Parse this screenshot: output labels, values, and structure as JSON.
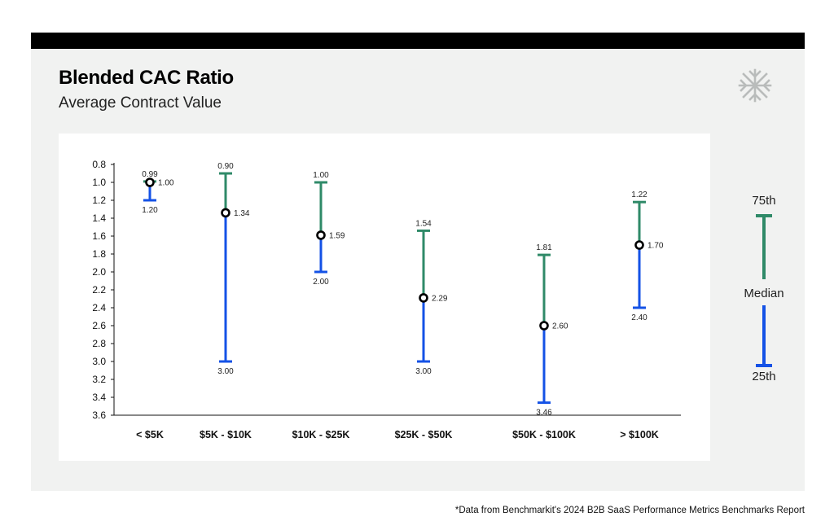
{
  "header": {
    "title": "Blended CAC Ratio",
    "subtitle": "Average Contract Value"
  },
  "logo": {
    "icon": "snowflake-logo-icon"
  },
  "colors": {
    "upper": "#2f8a68",
    "lower": "#1452e6",
    "median_stroke": "#000000",
    "panel_bg": "#f1f2f1",
    "topbar": "#000000"
  },
  "legend": {
    "top_label": "75th",
    "middle_label": "Median",
    "bottom_label": "25th"
  },
  "footnote": "*Data from Benchmarkit's 2024 B2B SaaS Performance Metrics Benchmarks Report",
  "chart_data": {
    "type": "range",
    "title": "Blended CAC Ratio",
    "subtitle": "Average Contract Value",
    "xlabel": "",
    "ylabel": "",
    "y_axis_inverted": true,
    "ylim": [
      0.8,
      3.6
    ],
    "yticks": [
      "0.8",
      "1.0",
      "1.2",
      "1.4",
      "1.6",
      "1.8",
      "2.0",
      "2.2",
      "2.4",
      "2.6",
      "2.8",
      "3.0",
      "3.2",
      "3.4",
      "3.6"
    ],
    "categories": [
      "< $5K",
      "$5K - $10K",
      "$10K - $25K",
      "$25K - $50K",
      "$50K - $100K",
      "> $100K"
    ],
    "series": [
      {
        "name": "75th",
        "values": [
          0.99,
          0.9,
          1.0,
          1.54,
          1.81,
          1.22
        ],
        "labels": [
          "0.99",
          "0.90",
          "1.00",
          "1.54",
          "1.81",
          "1.22"
        ]
      },
      {
        "name": "Median",
        "values": [
          1.0,
          1.34,
          1.59,
          2.29,
          2.6,
          1.7
        ],
        "labels": [
          "1.00",
          "1.34",
          "1.59",
          "2.29",
          "2.60",
          "1.70"
        ]
      },
      {
        "name": "25th",
        "values": [
          1.2,
          3.0,
          2.0,
          3.0,
          3.46,
          2.4
        ],
        "labels": [
          "1.20",
          "3.00",
          "2.00",
          "3.00",
          "3.46",
          "2.40"
        ]
      }
    ],
    "grid": false,
    "legend_position": "right"
  }
}
